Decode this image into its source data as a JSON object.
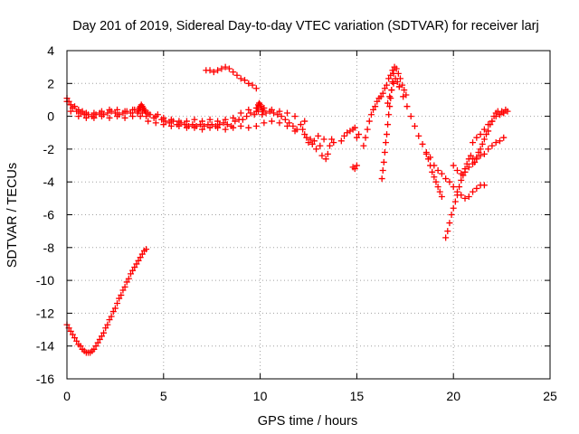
{
  "chart_data": {
    "type": "scatter",
    "title": "Day 201 of 2019, Sidereal Day-to-day VTEC variation (SDTVAR) for receiver larj",
    "xlabel": "GPS time / hours",
    "ylabel": "SDTVAR / TECUs",
    "xlim": [
      0,
      25
    ],
    "ylim": [
      -16,
      4
    ],
    "xticks": [
      0,
      5,
      10,
      15,
      20,
      25
    ],
    "yticks": [
      -16,
      -14,
      -12,
      -10,
      -8,
      -6,
      -4,
      -2,
      0,
      2,
      4
    ],
    "grid": true,
    "marker": "plus",
    "color": "#ff0000",
    "series": [
      {
        "name": "arc-main",
        "x": [
          0.0,
          0.1,
          0.2,
          0.3,
          0.5,
          0.7,
          0.9,
          1.1,
          1.3,
          1.5,
          1.7,
          1.9,
          2.1,
          2.3,
          2.5,
          2.7,
          2.9,
          3.1,
          3.3,
          3.5,
          3.7,
          3.9,
          4.1,
          4.3,
          4.5,
          4.7,
          4.9,
          5.1,
          5.3,
          5.5,
          5.7,
          5.9,
          6.1,
          6.3,
          6.5,
          6.7,
          6.9,
          7.1,
          7.3,
          7.5,
          7.7,
          7.9,
          8.1,
          8.3,
          8.5,
          8.7,
          8.9,
          9.1,
          9.3,
          9.5,
          9.7,
          9.9,
          10.1,
          10.3,
          10.5,
          10.7,
          10.9,
          11.1,
          11.3,
          11.5,
          11.7,
          11.9,
          12.1,
          12.3
        ],
        "y": [
          1.1,
          0.9,
          0.7,
          0.5,
          0.3,
          0.2,
          0.1,
          0.1,
          0.0,
          0.1,
          0.2,
          0.1,
          0.2,
          0.3,
          0.2,
          0.1,
          0.2,
          0.3,
          0.2,
          0.4,
          0.3,
          0.2,
          0.0,
          0.1,
          -0.1,
          0.1,
          -0.2,
          -0.3,
          -0.4,
          -0.3,
          -0.5,
          -0.4,
          -0.5,
          -0.6,
          -0.5,
          -0.6,
          -0.5,
          -0.6,
          -0.5,
          -0.5,
          -0.6,
          -0.5,
          -0.4,
          -0.5,
          -0.6,
          -0.3,
          -0.2,
          -0.2,
          0.0,
          0.2,
          0.1,
          0.3,
          0.1,
          0.2,
          0.3,
          0.2,
          0.1,
          0.0,
          -0.2,
          -0.4,
          -0.6,
          -0.8,
          -0.5,
          -0.3
        ]
      },
      {
        "name": "arc-band-upper",
        "x": [
          0.0,
          0.2,
          0.4,
          0.6,
          0.8,
          1.0,
          1.4,
          1.8,
          2.2,
          2.6,
          3.0,
          3.4,
          3.8,
          4.2,
          4.6,
          5.0,
          5.4,
          5.8,
          6.2,
          6.6,
          7.0,
          7.4,
          7.8,
          8.2,
          8.6,
          9.0,
          9.4,
          9.8,
          10.2,
          10.6,
          11.0,
          11.4,
          11.8
        ],
        "y": [
          0.9,
          0.7,
          0.6,
          0.4,
          0.3,
          0.2,
          0.2,
          0.3,
          0.4,
          0.4,
          0.3,
          0.4,
          0.5,
          0.2,
          0.0,
          -0.1,
          -0.2,
          -0.3,
          -0.3,
          -0.2,
          -0.3,
          -0.2,
          -0.3,
          -0.2,
          -0.1,
          0.2,
          0.4,
          0.5,
          0.5,
          0.4,
          0.3,
          0.2,
          0.0
        ]
      },
      {
        "name": "arc-band-lower",
        "x": [
          0.2,
          0.6,
          1.0,
          1.4,
          1.8,
          2.2,
          2.6,
          3.0,
          3.4,
          3.8,
          4.2,
          4.6,
          5.0,
          5.4,
          5.8,
          6.2,
          6.6,
          7.0,
          7.4,
          7.8,
          8.2,
          8.6,
          9.0,
          9.4,
          9.8,
          10.2,
          10.6,
          11.0,
          11.4,
          11.8
        ],
        "y": [
          0.3,
          0.0,
          -0.1,
          -0.1,
          0.0,
          -0.1,
          0.0,
          -0.1,
          0.0,
          0.0,
          -0.3,
          -0.4,
          -0.5,
          -0.6,
          -0.6,
          -0.7,
          -0.7,
          -0.8,
          -0.7,
          -0.7,
          -0.8,
          -0.7,
          -0.6,
          -0.7,
          -0.6,
          -0.4,
          -0.3,
          -0.4,
          -0.6,
          -0.9
        ]
      },
      {
        "name": "arc-spike-3.8",
        "x": [
          3.65,
          3.7,
          3.75,
          3.8,
          3.85,
          3.9,
          3.95,
          4.0,
          4.05,
          4.1
        ],
        "y": [
          0.2,
          0.4,
          0.5,
          0.6,
          0.7,
          0.6,
          0.5,
          0.4,
          0.3,
          0.2
        ]
      },
      {
        "name": "arc-bump-9.9",
        "x": [
          9.8,
          9.85,
          9.9,
          9.95,
          10.0,
          10.05,
          10.1,
          10.15
        ],
        "y": [
          0.3,
          0.5,
          0.7,
          0.8,
          0.7,
          0.6,
          0.4,
          0.3
        ]
      },
      {
        "name": "arc-top",
        "x": [
          7.2,
          7.4,
          7.6,
          7.8,
          8.0,
          8.2,
          8.4,
          8.6,
          8.8,
          9.0,
          9.2,
          9.4,
          9.6,
          9.8
        ],
        "y": [
          2.8,
          2.8,
          2.7,
          2.8,
          2.9,
          3.0,
          2.9,
          2.7,
          2.5,
          2.3,
          2.2,
          2.0,
          1.9,
          1.7
        ]
      },
      {
        "name": "arc-bottom",
        "x": [
          0.0,
          0.1,
          0.2,
          0.3,
          0.4,
          0.5,
          0.6,
          0.7,
          0.8,
          0.9,
          1.0,
          1.1,
          1.2,
          1.3,
          1.4,
          1.5,
          1.6,
          1.7,
          1.8,
          1.9,
          2.0,
          2.1,
          2.2,
          2.3,
          2.4,
          2.5,
          2.6,
          2.7,
          2.8,
          2.9,
          3.0,
          3.1,
          3.2,
          3.3,
          3.4,
          3.5,
          3.6,
          3.7,
          3.8,
          3.9,
          4.0,
          4.1
        ],
        "y": [
          -12.7,
          -12.9,
          -13.1,
          -13.3,
          -13.5,
          -13.7,
          -13.9,
          -14.0,
          -14.2,
          -14.3,
          -14.4,
          -14.4,
          -14.4,
          -14.3,
          -14.2,
          -14.0,
          -13.8,
          -13.6,
          -13.4,
          -13.2,
          -12.9,
          -12.7,
          -12.4,
          -12.2,
          -11.9,
          -11.7,
          -11.4,
          -11.1,
          -10.9,
          -10.6,
          -10.4,
          -10.1,
          -9.9,
          -9.6,
          -9.4,
          -9.2,
          -9.0,
          -8.8,
          -8.6,
          -8.4,
          -8.2,
          -8.1
        ]
      },
      {
        "name": "arc-12-15",
        "x": [
          12.2,
          12.3,
          12.4,
          12.5,
          12.6,
          12.7,
          12.8,
          12.9,
          13.0,
          13.1,
          13.2,
          13.3,
          13.4,
          13.5,
          13.6,
          13.7,
          13.8
        ],
        "y": [
          -0.8,
          -1.1,
          -1.3,
          -1.6,
          -1.4,
          -1.7,
          -1.5,
          -2.0,
          -1.2,
          -1.8,
          -2.4,
          -1.4,
          -2.6,
          -2.3,
          -1.8,
          -1.4,
          -1.6
        ]
      },
      {
        "name": "arc-scatter-15",
        "x": [
          14.2,
          14.35,
          14.5,
          14.65,
          14.8,
          14.9,
          15.0,
          15.1,
          14.8,
          14.9,
          15.0
        ],
        "y": [
          -1.5,
          -1.2,
          -1.0,
          -0.9,
          -0.8,
          -0.7,
          -1.3,
          -1.1,
          -3.1,
          -3.2,
          -3.0
        ]
      },
      {
        "name": "arc-rise-16",
        "x": [
          15.35,
          15.45,
          15.55,
          15.65,
          15.75,
          15.85,
          15.95,
          16.05,
          16.15,
          16.25,
          16.35,
          16.45,
          16.55,
          16.65,
          16.75,
          16.85,
          16.95,
          17.05,
          17.15,
          17.25,
          17.35,
          17.45,
          17.55
        ],
        "y": [
          -1.8,
          -1.3,
          -0.8,
          -0.3,
          0.1,
          0.4,
          0.6,
          0.9,
          1.1,
          1.2,
          1.4,
          1.7,
          1.9,
          2.3,
          2.5,
          2.8,
          3.0,
          2.9,
          2.6,
          2.3,
          1.9,
          1.6,
          1.3
        ]
      },
      {
        "name": "arc-spike-16.5",
        "x": [
          16.3,
          16.35,
          16.4,
          16.45,
          16.5,
          16.55,
          16.6,
          16.65,
          16.7,
          16.75,
          16.8,
          16.85,
          16.9
        ],
        "y": [
          -3.8,
          -3.3,
          -2.8,
          -2.2,
          -1.6,
          -1.1,
          -0.5,
          0.1,
          0.6,
          1.1,
          1.6,
          2.1,
          2.6
        ]
      },
      {
        "name": "arc-mid-16",
        "x": [
          16.6,
          16.7,
          16.8,
          16.9,
          17.0,
          17.1,
          17.2
        ],
        "y": [
          0.8,
          1.2,
          1.6,
          2.0,
          2.3,
          2.1,
          1.8
        ]
      },
      {
        "name": "arc-fall-17",
        "x": [
          17.2,
          17.4,
          17.6,
          17.8,
          18.0,
          18.2,
          18.4,
          18.6,
          18.8,
          19.0,
          19.2,
          19.4,
          19.6,
          19.8,
          20.0,
          20.2,
          20.4,
          20.6,
          20.8,
          21.0,
          21.2,
          21.4,
          21.6
        ],
        "y": [
          1.8,
          1.2,
          0.6,
          0.0,
          -0.6,
          -1.2,
          -1.7,
          -2.2,
          -2.5,
          -3.0,
          -3.3,
          -3.5,
          -3.8,
          -4.0,
          -4.3,
          -4.6,
          -4.8,
          -5.0,
          -4.9,
          -4.6,
          -4.4,
          -4.2,
          -4.2
        ]
      },
      {
        "name": "arc-descent-19",
        "x": [
          18.6,
          18.7,
          18.8,
          18.9,
          19.0,
          19.1,
          19.2,
          19.3,
          19.4
        ],
        "y": [
          -2.3,
          -2.6,
          -3.0,
          -3.4,
          -3.7,
          -4.0,
          -4.3,
          -4.6,
          -4.9
        ]
      },
      {
        "name": "arc-rise-20",
        "x": [
          19.6,
          19.7,
          19.8,
          19.9,
          20.0,
          20.1,
          20.2,
          20.3,
          20.4,
          20.5,
          20.6,
          20.7,
          20.8,
          20.9,
          21.0,
          21.1,
          21.2,
          21.3,
          21.4,
          21.5,
          21.6,
          21.7,
          21.8,
          21.9,
          22.0,
          22.1,
          22.2,
          22.3,
          22.4,
          22.5,
          22.6,
          22.7,
          22.8
        ],
        "y": [
          -7.4,
          -7.0,
          -6.5,
          -6.0,
          -5.6,
          -5.2,
          -4.8,
          -4.3,
          -3.9,
          -3.6,
          -3.2,
          -2.9,
          -2.6,
          -2.4,
          -2.6,
          -2.8,
          -2.5,
          -2.2,
          -2.0,
          -1.7,
          -1.4,
          -1.1,
          -0.9,
          -0.5,
          -0.3,
          0.0,
          0.2,
          0.3,
          0.1,
          0.3,
          0.2,
          0.4,
          0.3
        ]
      },
      {
        "name": "arc-low-20",
        "x": [
          20.0,
          20.2,
          20.4,
          20.6,
          20.8,
          21.0,
          21.2,
          21.4,
          21.6,
          21.8,
          22.0,
          22.2,
          22.4,
          22.6
        ],
        "y": [
          -3.0,
          -3.3,
          -3.5,
          -3.4,
          -3.1,
          -2.9,
          -2.6,
          -2.4,
          -2.3,
          -2.0,
          -1.8,
          -1.6,
          -1.5,
          -1.3
        ]
      },
      {
        "name": "arc-mid-21",
        "x": [
          21.0,
          21.2,
          21.4,
          21.6,
          21.8,
          22.0,
          22.2,
          22.4,
          22.6
        ],
        "y": [
          -1.6,
          -1.3,
          -1.1,
          -0.8,
          -0.5,
          -0.3,
          0.0,
          0.1,
          0.2
        ]
      }
    ]
  }
}
